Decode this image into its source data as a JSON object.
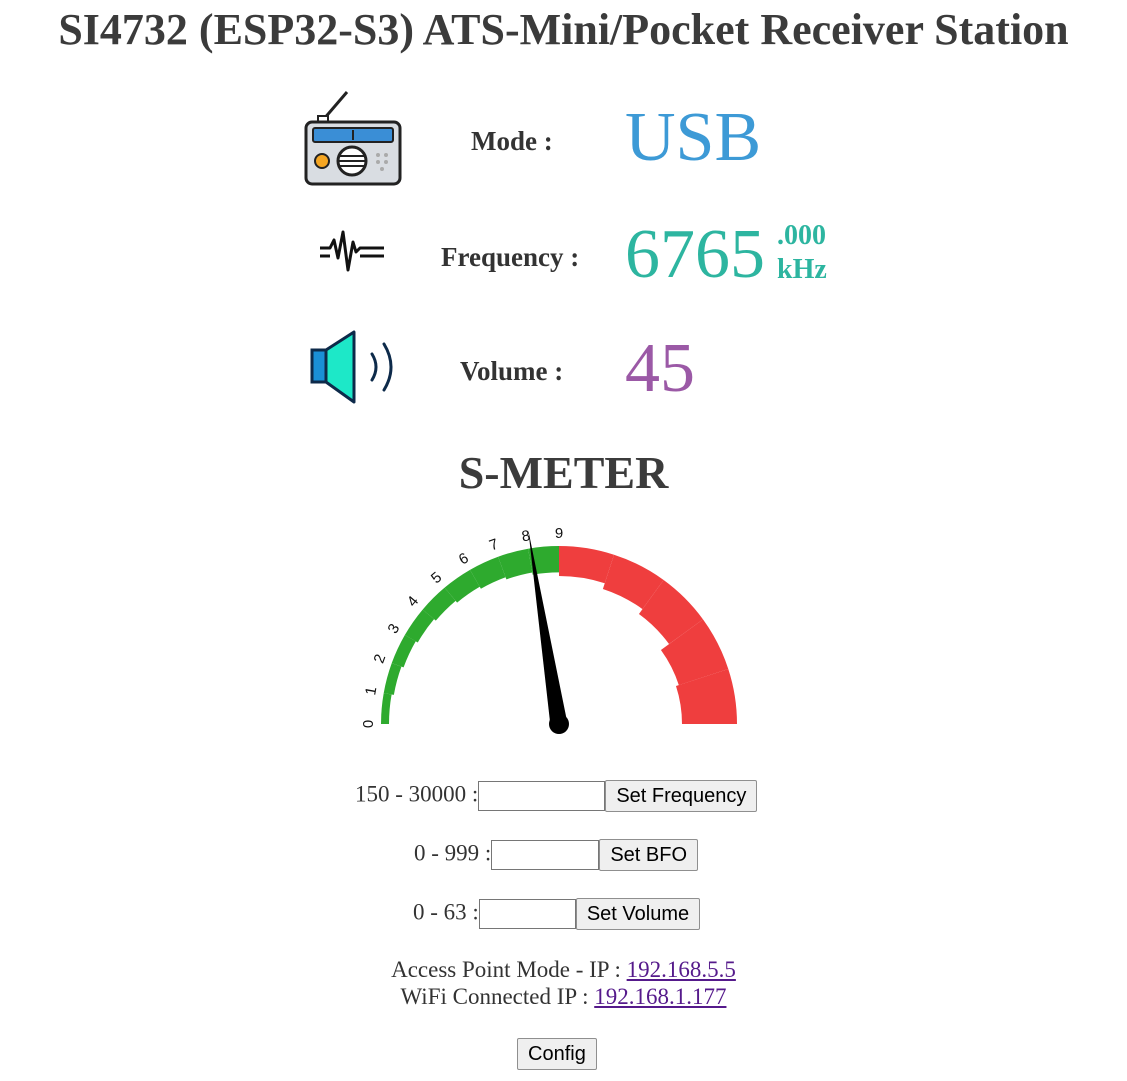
{
  "header": {
    "title": "SI4732 (ESP32-S3) ATS-Mini/Pocket Receiver Station"
  },
  "status": {
    "mode": {
      "icon": "radio-icon",
      "label": "Mode :",
      "value": "USB",
      "color": "#3d9ad6"
    },
    "frequency": {
      "icon": "waveform-icon",
      "label": "Frequency :",
      "value": "6765",
      "fraction": ".000",
      "unit": "kHz",
      "color": "#2db5a0"
    },
    "volume": {
      "icon": "speaker-icon",
      "label": "Volume :",
      "value": "45",
      "color": "#9b59a6"
    }
  },
  "smeter": {
    "title": "S-METER",
    "ticks": [
      "0",
      "1",
      "2",
      "3",
      "4",
      "5",
      "6",
      "7",
      "8",
      "9"
    ],
    "reading": 8.1,
    "colors": {
      "good": "#2eaa2e",
      "over": "#ef3e3e",
      "needle": "#000000"
    }
  },
  "controls": {
    "frequency": {
      "range": "150 - 30000 :",
      "button": "Set Frequency",
      "value": ""
    },
    "bfo": {
      "range": "0 - 999 :",
      "button": "Set BFO",
      "value": ""
    },
    "volume": {
      "range": "0 - 63 :",
      "button": "Set Volume",
      "value": ""
    }
  },
  "network": {
    "ap_label": "Access Point Mode - IP :",
    "ap_ip": "192.168.5.5",
    "wifi_label": "WiFi Connected IP :",
    "wifi_ip": "192.168.1.177"
  },
  "config": {
    "button": "Config"
  }
}
